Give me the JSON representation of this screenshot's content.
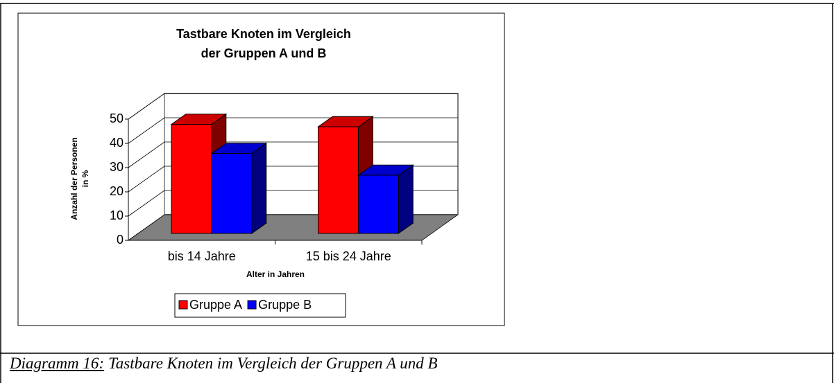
{
  "chart_data": {
    "type": "bar3d",
    "title": [
      "Tastbare Knoten im Vergleich",
      "der Gruppen A und B"
    ],
    "x_label": "Alter in Jahren",
    "y_label": [
      "Anzahl der Personen",
      "in %"
    ],
    "categories": [
      "bis 14 Jahre",
      "15 bis 24 Jahre"
    ],
    "series": [
      {
        "name": "Gruppe A",
        "color": "#ff0000",
        "values": [
          45,
          44
        ]
      },
      {
        "name": "Gruppe B",
        "color": "#0000ff",
        "values": [
          33,
          24
        ]
      }
    ],
    "ylim": [
      0,
      50
    ],
    "yticks": [
      0,
      10,
      20,
      30,
      40,
      50
    ],
    "grid": true,
    "legend": "bottom"
  },
  "caption": {
    "label": "Diagramm 16:",
    "text": "Tastbare Knoten im Vergleich der Gruppen A und B"
  }
}
